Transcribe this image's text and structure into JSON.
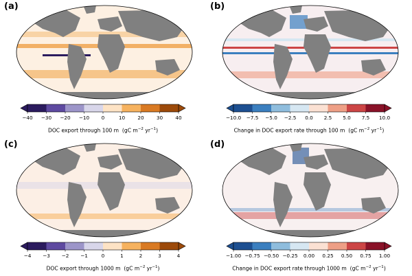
{
  "panels": [
    {
      "id": "a",
      "letter": "(a)",
      "label_main": "DOC export through 100 m",
      "label_units": "(gC m",
      "label_exp1": "−2",
      "label_mid": " yr",
      "label_exp2": "−1",
      "label_close": ")",
      "colorbar": {
        "ticks": [
          "−40",
          "−30",
          "−20",
          "−10",
          "0",
          "10",
          "20",
          "30",
          "40"
        ],
        "colors": [
          "#2b1b5e",
          "#5e4aa0",
          "#9c95c9",
          "#d8d6ea",
          "#fde3c5",
          "#f6b25f",
          "#d97a23",
          "#9c4a0a"
        ],
        "extend": "both"
      }
    },
    {
      "id": "b",
      "letter": "(b)",
      "label_main": "Change in DOC export rate through 100 m",
      "label_units": "(gC m",
      "label_exp1": "−2",
      "label_mid": " yr",
      "label_exp2": "−1",
      "label_close": ")",
      "colorbar": {
        "ticks": [
          "−10.0",
          "−7.5",
          "−5.0",
          "−2.5",
          "0.0",
          "2.5",
          "5.0",
          "7.5",
          "10.0"
        ],
        "colors": [
          "#1d4f91",
          "#3b7fbf",
          "#8fbddd",
          "#d6e7f2",
          "#fbe1d3",
          "#ee9f86",
          "#cc4545",
          "#8a1228"
        ],
        "extend": "both"
      }
    },
    {
      "id": "c",
      "letter": "(c)",
      "label_main": "DOC export through 1000 m",
      "label_units": "(gC m",
      "label_exp1": "−2",
      "label_mid": " yr",
      "label_exp2": "−1",
      "label_close": ")",
      "colorbar": {
        "ticks": [
          "−4",
          "−3",
          "−2",
          "−1",
          "0",
          "1",
          "2",
          "3",
          "4"
        ],
        "colors": [
          "#2b1b5e",
          "#5e4aa0",
          "#9c95c9",
          "#d8d6ea",
          "#fde3c5",
          "#f6b25f",
          "#d97a23",
          "#9c4a0a"
        ],
        "extend": "both"
      }
    },
    {
      "id": "d",
      "letter": "(d)",
      "label_main": "Change in DOC export rate through 1000 m",
      "label_units": "(gC m",
      "label_exp1": "−2",
      "label_mid": " yr",
      "label_exp2": "−1",
      "label_close": ")",
      "colorbar": {
        "ticks": [
          "−1.00",
          "−0.75",
          "−0.50",
          "−0.25",
          "0.00",
          "0.25",
          "0.50",
          "0.75",
          "1.00"
        ],
        "colors": [
          "#1d4f91",
          "#3b7fbf",
          "#8fbddd",
          "#d6e7f2",
          "#fbe1d3",
          "#ee9f86",
          "#cc4545",
          "#8a1228"
        ],
        "extend": "both"
      }
    }
  ],
  "map_style": {
    "land_color": "#808080",
    "ocean_base_a": "#fdf0e2",
    "ocean_base_b": "#f7eef0",
    "ocean_base_c": "#fcefe5",
    "ocean_base_d": "#f8f0f0"
  }
}
